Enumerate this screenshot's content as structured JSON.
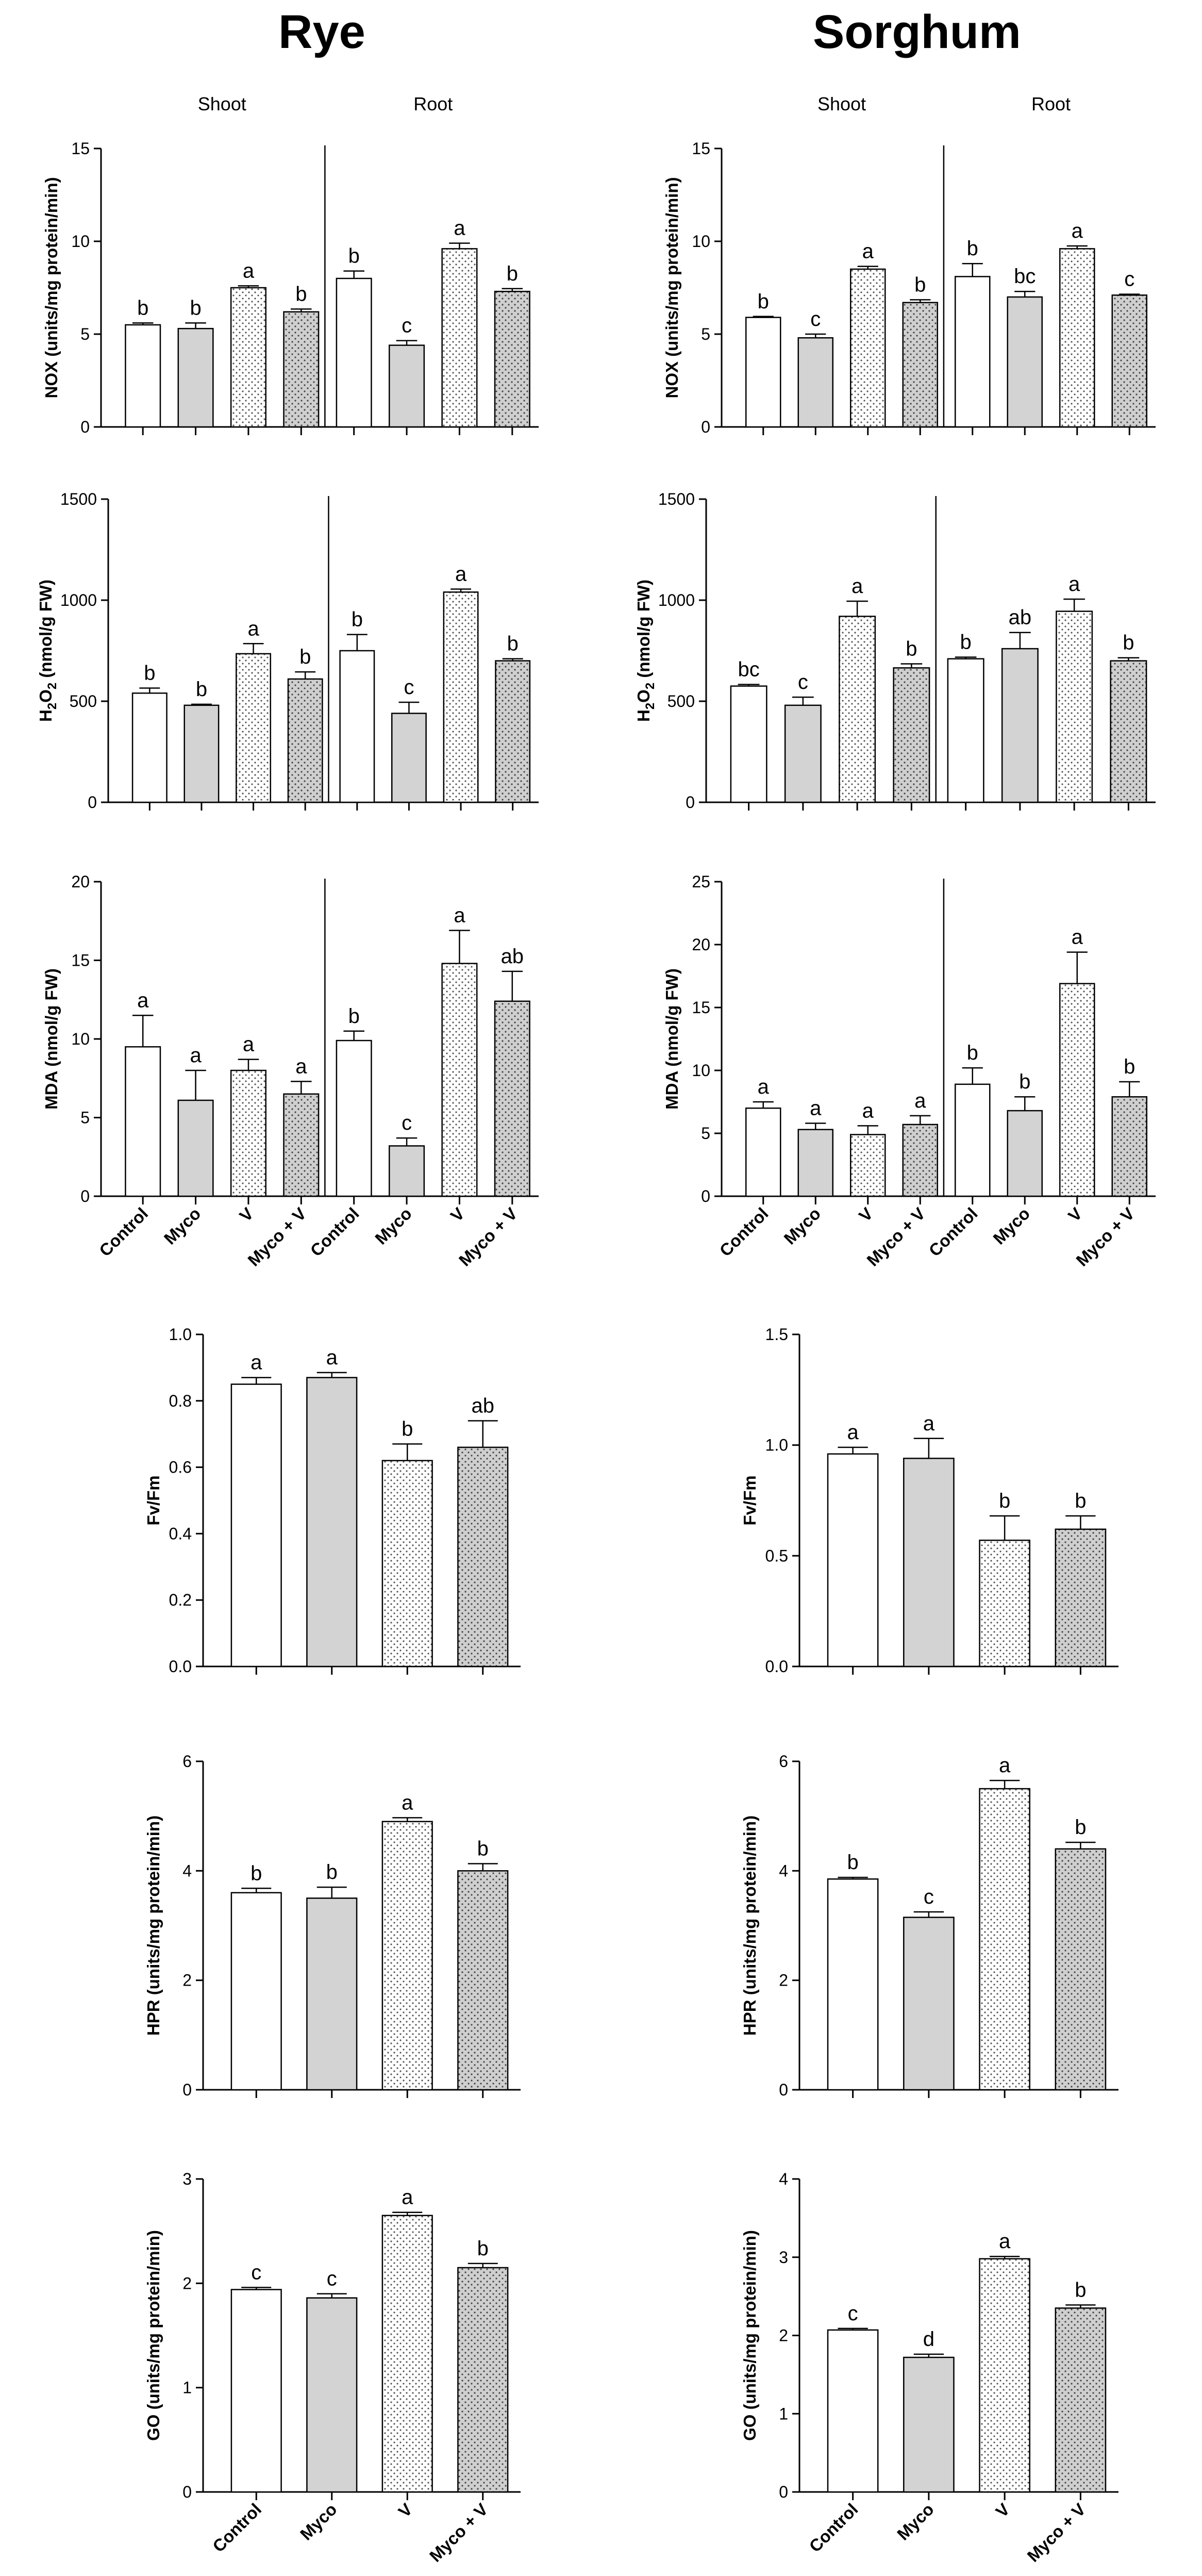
{
  "titles": {
    "rye": "Rye",
    "sorghum": "Sorghum"
  },
  "section_labels": {
    "shoot": "Shoot",
    "root": "Root"
  },
  "patterns": {
    "control": "open",
    "myco": "grey",
    "v": "dotted",
    "myco_v": "dotted-grey"
  },
  "chart_data": [
    {
      "id": "rye-nox",
      "type": "bar",
      "ylabel": "NOX (units/mg protein/min)",
      "ylim": [
        0,
        15
      ],
      "yticks": [
        0,
        5,
        10,
        15
      ],
      "sections": [
        "Shoot",
        "Root"
      ],
      "categories": [
        "Control",
        "Myco",
        "V",
        "Myco + V",
        "Control",
        "Myco",
        "V",
        "Myco + V"
      ],
      "values": [
        5.5,
        5.3,
        7.5,
        6.2,
        8.0,
        4.4,
        9.6,
        7.3
      ],
      "errors": [
        0.1,
        0.3,
        0.1,
        0.15,
        0.4,
        0.25,
        0.3,
        0.15
      ],
      "letters": [
        "b",
        "b",
        "a",
        "b",
        "b",
        "c",
        "a",
        "b"
      ]
    },
    {
      "id": "sorghum-nox",
      "type": "bar",
      "ylabel": "NOX (units/mg protein/min)",
      "ylim": [
        0,
        15
      ],
      "yticks": [
        0,
        5,
        10,
        15
      ],
      "sections": [
        "Shoot",
        "Root"
      ],
      "categories": [
        "Control",
        "Myco",
        "V",
        "Myco + V",
        "Control",
        "Myco",
        "V",
        "Myco + V"
      ],
      "values": [
        5.9,
        4.8,
        8.5,
        6.7,
        8.1,
        7.0,
        9.6,
        7.1
      ],
      "errors": [
        0.05,
        0.2,
        0.15,
        0.15,
        0.7,
        0.3,
        0.15,
        0.05
      ],
      "letters": [
        "b",
        "c",
        "a",
        "b",
        "b",
        "bc",
        "a",
        "c"
      ]
    },
    {
      "id": "rye-h2o2",
      "type": "bar",
      "ylabel": "H2O2 (nmol/g FW)",
      "ylim": [
        0,
        1500
      ],
      "yticks": [
        0,
        500,
        1000,
        1500
      ],
      "categories": [
        "Control",
        "Myco",
        "V",
        "Myco + V",
        "Control",
        "Myco",
        "V",
        "Myco + V"
      ],
      "values": [
        540,
        480,
        735,
        610,
        750,
        440,
        1040,
        700
      ],
      "errors": [
        25,
        5,
        50,
        35,
        80,
        55,
        15,
        10
      ],
      "letters": [
        "b",
        "b",
        "a",
        "b",
        "b",
        "c",
        "a",
        "b"
      ]
    },
    {
      "id": "sorghum-h2o2",
      "type": "bar",
      "ylabel": "H2O2 (nmol/g FW)",
      "ylim": [
        0,
        1500
      ],
      "yticks": [
        0,
        500,
        1000,
        1500
      ],
      "categories": [
        "Control",
        "Myco",
        "V",
        "Myco + V",
        "Control",
        "Myco",
        "V",
        "Myco + V"
      ],
      "values": [
        575,
        480,
        920,
        665,
        710,
        760,
        945,
        700
      ],
      "errors": [
        8,
        40,
        75,
        20,
        8,
        80,
        60,
        15
      ],
      "letters": [
        "bc",
        "c",
        "a",
        "b",
        "b",
        "ab",
        "a",
        "b"
      ]
    },
    {
      "id": "rye-mda",
      "type": "bar",
      "ylabel": "MDA (nmol/g FW)",
      "ylim": [
        0,
        20
      ],
      "yticks": [
        0,
        5,
        10,
        15,
        20
      ],
      "categories": [
        "Control",
        "Myco",
        "V",
        "Myco + V",
        "Control",
        "Myco",
        "V",
        "Myco + V"
      ],
      "values": [
        9.5,
        6.1,
        8.0,
        6.5,
        9.9,
        3.2,
        14.8,
        12.4
      ],
      "errors": [
        2.0,
        1.9,
        0.7,
        0.8,
        0.6,
        0.5,
        2.1,
        1.9
      ],
      "letters": [
        "a",
        "a",
        "a",
        "a",
        "b",
        "c",
        "a",
        "ab"
      ]
    },
    {
      "id": "sorghum-mda",
      "type": "bar",
      "ylabel": "MDA (nmol/g FW)",
      "ylim": [
        0,
        25
      ],
      "yticks": [
        0,
        5,
        10,
        15,
        20,
        25
      ],
      "categories": [
        "Control",
        "Myco",
        "V",
        "Myco + V",
        "Control",
        "Myco",
        "V",
        "Myco + V"
      ],
      "values": [
        7.0,
        5.3,
        4.9,
        5.7,
        8.9,
        6.8,
        16.9,
        7.9
      ],
      "errors": [
        0.5,
        0.5,
        0.7,
        0.7,
        1.3,
        1.1,
        2.5,
        1.2
      ],
      "letters": [
        "a",
        "a",
        "a",
        "a",
        "b",
        "b",
        "a",
        "b"
      ]
    },
    {
      "id": "rye-fvfm",
      "type": "bar",
      "ylabel": "Fv/Fm",
      "ylim": [
        0,
        1.0
      ],
      "yticks": [
        "0.0",
        "0.2",
        "0.4",
        "0.6",
        "0.8",
        "1.0"
      ],
      "categories": [
        "Control",
        "Myco",
        "V",
        "Myco + V"
      ],
      "values": [
        0.85,
        0.87,
        0.62,
        0.66
      ],
      "errors": [
        0.02,
        0.015,
        0.05,
        0.08
      ],
      "letters": [
        "a",
        "a",
        "b",
        "ab"
      ]
    },
    {
      "id": "sorghum-fvfm",
      "type": "bar",
      "ylabel": "Fv/Fm",
      "ylim": [
        0,
        1.5
      ],
      "yticks": [
        "0.0",
        "0.5",
        "1.0",
        "1.5"
      ],
      "categories": [
        "Control",
        "Myco",
        "V",
        "Myco + V"
      ],
      "values": [
        0.96,
        0.94,
        0.57,
        0.62
      ],
      "errors": [
        0.03,
        0.09,
        0.11,
        0.06
      ],
      "letters": [
        "a",
        "a",
        "b",
        "b"
      ]
    },
    {
      "id": "rye-hpr",
      "type": "bar",
      "ylabel": "HPR (units/mg protein/min)",
      "ylim": [
        0,
        6
      ],
      "yticks": [
        0,
        2,
        4,
        6
      ],
      "categories": [
        "Control",
        "Myco",
        "V",
        "Myco + V"
      ],
      "values": [
        3.6,
        3.5,
        4.9,
        4.0
      ],
      "errors": [
        0.08,
        0.2,
        0.07,
        0.13
      ],
      "letters": [
        "b",
        "b",
        "a",
        "b"
      ]
    },
    {
      "id": "sorghum-hpr",
      "type": "bar",
      "ylabel": "HPR (units/mg protein/min)",
      "ylim": [
        0,
        6
      ],
      "yticks": [
        0,
        2,
        4,
        6
      ],
      "categories": [
        "Control",
        "Myco",
        "V",
        "Myco + V"
      ],
      "values": [
        3.85,
        3.15,
        5.5,
        4.4
      ],
      "errors": [
        0.03,
        0.1,
        0.15,
        0.12
      ],
      "letters": [
        "b",
        "c",
        "a",
        "b"
      ]
    },
    {
      "id": "rye-go",
      "type": "bar",
      "ylabel": "GO (units/mg protein/min)",
      "ylim": [
        0,
        3
      ],
      "yticks": [
        0,
        1,
        2,
        3
      ],
      "categories": [
        "Control",
        "Myco",
        "V",
        "Myco + V"
      ],
      "values": [
        1.94,
        1.86,
        2.65,
        2.15
      ],
      "errors": [
        0.02,
        0.04,
        0.03,
        0.04
      ],
      "letters": [
        "c",
        "c",
        "a",
        "b"
      ]
    },
    {
      "id": "sorghum-go",
      "type": "bar",
      "ylabel": "GO (units/mg protein/min)",
      "ylim": [
        0,
        4
      ],
      "yticks": [
        0,
        1,
        2,
        3,
        4
      ],
      "categories": [
        "Control",
        "Myco",
        "V",
        "Myco + V"
      ],
      "values": [
        2.07,
        1.72,
        2.98,
        2.35
      ],
      "errors": [
        0.02,
        0.04,
        0.03,
        0.04
      ],
      "letters": [
        "c",
        "d",
        "a",
        "b"
      ]
    }
  ]
}
